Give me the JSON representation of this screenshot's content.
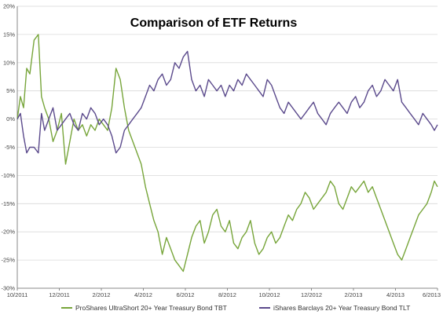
{
  "chart_data": {
    "type": "line",
    "title": "Comparison of ETF Returns",
    "xlabel": "",
    "ylabel": "",
    "x_tick_labels": [
      "10/2011",
      "12/2011",
      "2/2012",
      "4/2012",
      "6/2012",
      "8/2012",
      "10/2012",
      "12/2012",
      "2/2013",
      "4/2013",
      "6/2013"
    ],
    "y_ticks": [
      20,
      15,
      10,
      5,
      0,
      -5,
      -10,
      -15,
      -20,
      -25,
      -30
    ],
    "y_tick_labels": [
      "20%",
      "15%",
      "10%",
      "5%",
      "0%",
      "-5%",
      "-10%",
      "-15%",
      "-20%",
      "-25%",
      "-30%"
    ],
    "ylim": [
      -30,
      20
    ],
    "x_range_months": [
      0,
      20
    ],
    "grid": true,
    "legend_position": "bottom",
    "series": [
      {
        "name": "ProShares UltraShort 20+ Year Treasury Bond TBT",
        "color": "#77A53A",
        "x": [
          0,
          0.15,
          0.3,
          0.45,
          0.6,
          0.8,
          1.0,
          1.15,
          1.3,
          1.5,
          1.7,
          1.9,
          2.1,
          2.3,
          2.5,
          2.7,
          2.9,
          3.1,
          3.3,
          3.5,
          3.7,
          3.9,
          4.1,
          4.3,
          4.5,
          4.7,
          4.9,
          5.1,
          5.3,
          5.5,
          5.7,
          5.9,
          6.1,
          6.3,
          6.5,
          6.7,
          6.9,
          7.1,
          7.3,
          7.5,
          7.7,
          7.9,
          8.1,
          8.3,
          8.5,
          8.7,
          8.9,
          9.1,
          9.3,
          9.5,
          9.7,
          9.9,
          10.1,
          10.3,
          10.5,
          10.7,
          10.9,
          11.1,
          11.3,
          11.5,
          11.7,
          11.9,
          12.1,
          12.3,
          12.5,
          12.7,
          12.9,
          13.1,
          13.3,
          13.5,
          13.7,
          13.9,
          14.1,
          14.3,
          14.5,
          14.7,
          14.9,
          15.1,
          15.3,
          15.5,
          15.7,
          15.9,
          16.1,
          16.3,
          16.5,
          16.7,
          16.9,
          17.1,
          17.3,
          17.5,
          17.7,
          17.9,
          18.1,
          18.3,
          18.5,
          18.7,
          18.9,
          19.1,
          19.3,
          19.5,
          19.7,
          19.85,
          20
        ],
        "values": [
          0,
          4,
          2,
          9,
          8,
          14,
          15,
          4,
          2,
          0,
          -4,
          -2,
          1,
          -8,
          -4,
          0,
          -2,
          -1,
          -3,
          -1,
          -2,
          0,
          -1,
          -2,
          2,
          9,
          7,
          2,
          -2,
          -4,
          -6,
          -8,
          -12,
          -15,
          -18,
          -20,
          -24,
          -21,
          -23,
          -25,
          -26,
          -27,
          -24,
          -21,
          -19,
          -18,
          -22,
          -20,
          -17,
          -16,
          -19,
          -20,
          -18,
          -22,
          -23,
          -21,
          -20,
          -18,
          -22,
          -24,
          -23,
          -21,
          -20,
          -22,
          -21,
          -19,
          -17,
          -18,
          -16,
          -15,
          -13,
          -14,
          -16,
          -15,
          -14,
          -13,
          -11,
          -12,
          -15,
          -16,
          -14,
          -12,
          -13,
          -12,
          -11,
          -13,
          -12,
          -14,
          -16,
          -18,
          -20,
          -22,
          -24,
          -25,
          -23,
          -21,
          -19,
          -17,
          -16,
          -15,
          -13,
          -11,
          -12
        ]
      },
      {
        "name": "iShares Barclays 20+ Year Treasury Bond TLT",
        "color": "#5B4A8C",
        "x": [
          0,
          0.15,
          0.3,
          0.45,
          0.6,
          0.8,
          1.0,
          1.15,
          1.3,
          1.5,
          1.7,
          1.9,
          2.1,
          2.3,
          2.5,
          2.7,
          2.9,
          3.1,
          3.3,
          3.5,
          3.7,
          3.9,
          4.1,
          4.3,
          4.5,
          4.7,
          4.9,
          5.1,
          5.3,
          5.5,
          5.7,
          5.9,
          6.1,
          6.3,
          6.5,
          6.7,
          6.9,
          7.1,
          7.3,
          7.5,
          7.7,
          7.9,
          8.1,
          8.3,
          8.5,
          8.7,
          8.9,
          9.1,
          9.3,
          9.5,
          9.7,
          9.9,
          10.1,
          10.3,
          10.5,
          10.7,
          10.9,
          11.1,
          11.3,
          11.5,
          11.7,
          11.9,
          12.1,
          12.3,
          12.5,
          12.7,
          12.9,
          13.1,
          13.3,
          13.5,
          13.7,
          13.9,
          14.1,
          14.3,
          14.5,
          14.7,
          14.9,
          15.1,
          15.3,
          15.5,
          15.7,
          15.9,
          16.1,
          16.3,
          16.5,
          16.7,
          16.9,
          17.1,
          17.3,
          17.5,
          17.7,
          17.9,
          18.1,
          18.3,
          18.5,
          18.7,
          18.9,
          19.1,
          19.3,
          19.5,
          19.7,
          19.85,
          20
        ],
        "values": [
          0,
          1,
          -3,
          -6,
          -5,
          -5,
          -6,
          1,
          -2,
          0,
          2,
          -2,
          -1,
          0,
          1,
          -1,
          -2,
          1,
          0,
          2,
          1,
          -1,
          0,
          -1,
          -3,
          -6,
          -5,
          -2,
          -1,
          0,
          1,
          2,
          4,
          6,
          5,
          7,
          8,
          6,
          7,
          10,
          9,
          11,
          12,
          7,
          5,
          6,
          4,
          7,
          6,
          5,
          6,
          4,
          6,
          5,
          7,
          6,
          8,
          7,
          6,
          5,
          4,
          7,
          6,
          4,
          2,
          1,
          3,
          2,
          1,
          0,
          1,
          2,
          3,
          1,
          0,
          -1,
          1,
          2,
          3,
          2,
          1,
          3,
          4,
          2,
          3,
          5,
          6,
          4,
          5,
          7,
          6,
          5,
          7,
          3,
          2,
          1,
          0,
          -1,
          1,
          0,
          -1,
          -2,
          -1
        ]
      }
    ]
  }
}
